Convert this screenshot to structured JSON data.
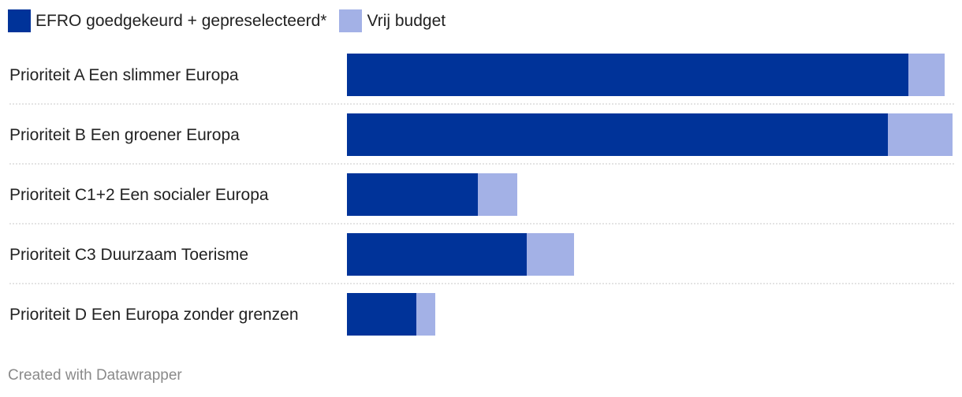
{
  "colors": {
    "approved": "#003399",
    "free": "#a3b1e6",
    "divider": "#c8c8c8",
    "text": "#222222",
    "footer": "#8a8a8a"
  },
  "legend": [
    {
      "label": "EFRO goedgekeurd + gepreselecteerd*",
      "color": "#003399"
    },
    {
      "label": "Vrij budget",
      "color": "#a3b1e6"
    }
  ],
  "chart_data": {
    "type": "bar",
    "orientation": "horizontal",
    "stacked": true,
    "categories": [
      "Prioriteit A Een slimmer Europa",
      "Prioriteit B Een groener Europa",
      "Prioriteit C1+2 Een socialer Europa",
      "Prioriteit C3 Duurzaam Toerisme",
      "Prioriteit D Een Europa zonder grenzen"
    ],
    "series": [
      {
        "name": "EFRO goedgekeurd + gepreselecteerd*",
        "values": [
          712,
          686,
          166,
          228,
          88
        ]
      },
      {
        "name": "Vrij budget",
        "values": [
          46,
          82,
          50,
          60,
          24
        ]
      }
    ],
    "xlim": [
      0,
      768
    ],
    "legend_position": "top-left"
  },
  "footer": {
    "text": "Created with Datawrapper"
  }
}
